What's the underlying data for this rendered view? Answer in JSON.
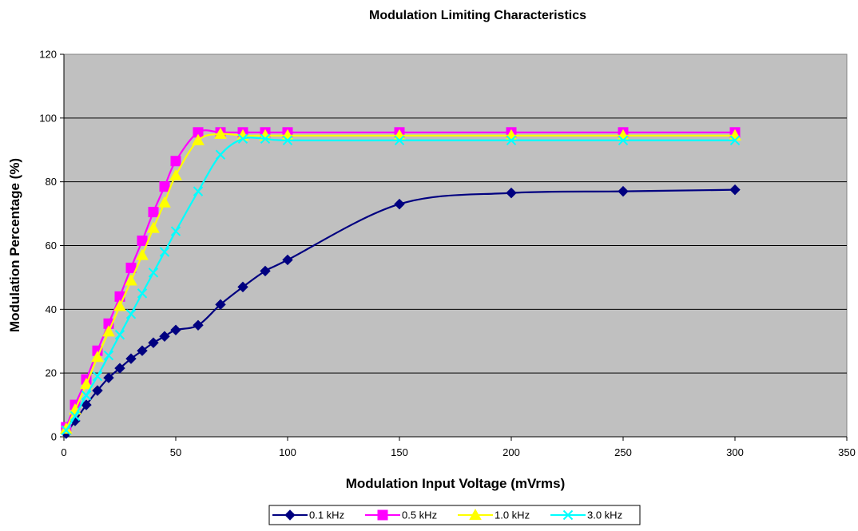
{
  "chart_data": {
    "type": "line",
    "title": "Modulation Limiting Characteristics",
    "xlabel": "Modulation Input Voltage (mVrms)",
    "ylabel": "Modulation Percentage (%)",
    "xlim": [
      0,
      350
    ],
    "ylim": [
      0,
      120
    ],
    "x_ticks": [
      0,
      50,
      100,
      150,
      200,
      250,
      300,
      350
    ],
    "y_ticks": [
      0,
      20,
      40,
      60,
      80,
      100,
      120
    ],
    "grid": "horizontal",
    "plot_background": "#c0c0c0",
    "legend_position": "bottom",
    "series": [
      {
        "name": "0.1 kHz",
        "color": "#000080",
        "marker": "diamond",
        "x": [
          1,
          5,
          10,
          15,
          20,
          25,
          30,
          35,
          40,
          45,
          50,
          60,
          70,
          80,
          90,
          100,
          150,
          200,
          250,
          300
        ],
        "y": [
          1,
          5,
          10,
          14.5,
          18.5,
          21.5,
          24.5,
          27,
          29.5,
          31.5,
          33.5,
          35,
          41.5,
          47,
          52,
          55.5,
          73,
          76.5,
          77,
          77.5
        ]
      },
      {
        "name": "0.5 kHz",
        "color": "#ff00ff",
        "marker": "square",
        "x": [
          1,
          5,
          10,
          15,
          20,
          25,
          30,
          35,
          40,
          45,
          50,
          60,
          70,
          80,
          90,
          100,
          150,
          200,
          250,
          300
        ],
        "y": [
          3,
          10,
          18,
          27,
          35.5,
          44,
          53,
          61.5,
          70.5,
          78.5,
          86.5,
          95.5,
          95.5,
          95.5,
          95.5,
          95.5,
          95.5,
          95.5,
          95.5,
          95.5
        ]
      },
      {
        "name": "1.0 kHz",
        "color": "#ffff00",
        "marker": "triangle",
        "x": [
          1,
          5,
          10,
          15,
          20,
          25,
          30,
          35,
          40,
          45,
          50,
          60,
          70,
          80,
          90,
          100,
          150,
          200,
          250,
          300
        ],
        "y": [
          2.5,
          8.5,
          16.5,
          25,
          33,
          41,
          49,
          57,
          65.5,
          73.5,
          82,
          93,
          95,
          94.5,
          94.5,
          94.5,
          94.5,
          94.5,
          94.5,
          94.5
        ]
      },
      {
        "name": "3.0 kHz",
        "color": "#00ffff",
        "marker": "x",
        "x": [
          1,
          5,
          10,
          15,
          20,
          25,
          30,
          35,
          40,
          45,
          50,
          60,
          70,
          80,
          90,
          100,
          150,
          200,
          250,
          300
        ],
        "y": [
          2,
          6.5,
          13,
          19,
          25.5,
          32,
          38.5,
          45,
          51.5,
          58,
          64.5,
          77,
          88.5,
          93.5,
          93.5,
          93,
          93,
          93,
          93,
          93
        ]
      }
    ]
  }
}
